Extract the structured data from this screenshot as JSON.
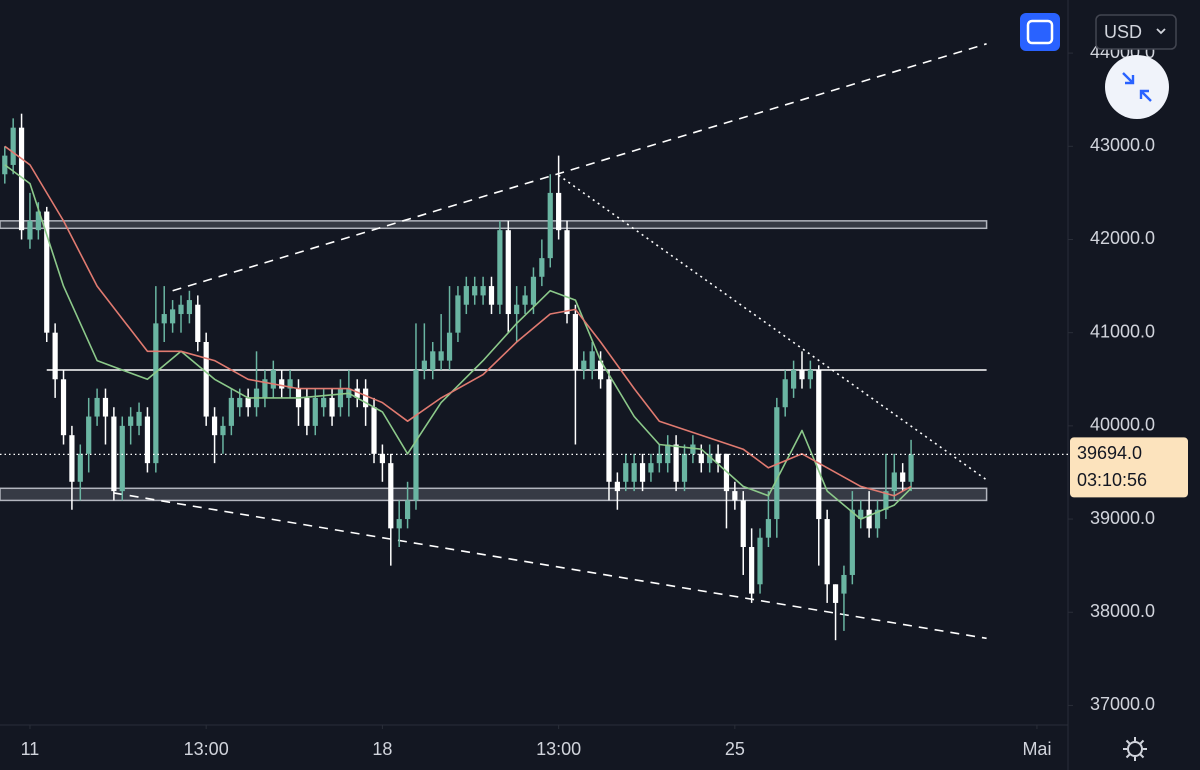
{
  "chart_data": {
    "type": "candlestick",
    "currency": "USD",
    "xlim": [
      -0.57,
      126.7
    ],
    "xticks": [
      {
        "value": 3,
        "label": "11"
      },
      {
        "value": 24,
        "label": "13:00"
      },
      {
        "value": 45,
        "label": "18"
      },
      {
        "value": 66,
        "label": "13:00"
      },
      {
        "value": 87,
        "label": "25"
      },
      {
        "value": 123,
        "label": "Mai"
      }
    ],
    "ylim": [
      36790,
      44570
    ],
    "yticks": [
      {
        "value": 37000,
        "label": "37000.0"
      },
      {
        "value": 38000,
        "label": "38000.0"
      },
      {
        "value": 39000,
        "label": "39000.0"
      },
      {
        "value": 40000,
        "label": "40000.0"
      },
      {
        "value": 41000,
        "label": "41000.0"
      },
      {
        "value": 42000,
        "label": "42000.0"
      },
      {
        "value": 43000,
        "label": "43000.0"
      },
      {
        "value": 44000,
        "label": "44000.0"
      }
    ],
    "up_color": "#6ab5a2",
    "down_color": "#ffffff",
    "x": [
      0,
      1,
      2,
      3,
      4,
      5,
      6,
      7,
      8,
      9,
      10,
      11,
      12,
      13,
      14,
      15,
      16,
      17,
      18,
      19,
      20,
      21,
      22,
      23,
      24,
      25,
      26,
      27,
      28,
      29,
      30,
      31,
      32,
      33,
      34,
      35,
      36,
      37,
      38,
      39,
      40,
      41,
      42,
      43,
      44,
      45,
      46,
      47,
      48,
      49,
      50,
      51,
      52,
      53,
      54,
      55,
      56,
      57,
      58,
      59,
      60,
      61,
      62,
      63,
      64,
      65,
      66,
      67,
      68,
      69,
      70,
      71,
      72,
      73,
      74,
      75,
      76,
      77,
      78,
      79,
      80,
      81,
      82,
      83,
      84,
      85,
      86,
      87,
      88,
      89,
      90,
      91,
      92,
      93,
      94,
      95,
      96,
      97,
      98,
      99,
      100,
      101,
      102,
      103,
      104,
      105,
      106,
      107,
      108
    ],
    "candles": {
      "open": [
        42700,
        42800,
        43200,
        42000,
        42100,
        42300,
        41000,
        40500,
        39900,
        39400,
        39700,
        40100,
        40300,
        40100,
        39300,
        40000,
        40000,
        40100,
        39600,
        41100,
        41100,
        41200,
        41200,
        41300,
        40900,
        40100,
        39900,
        40000,
        40200,
        40300,
        40200,
        40300,
        40400,
        40500,
        40400,
        40400,
        40300,
        40000,
        40200,
        40300,
        40200,
        40300,
        40400,
        40400,
        40200,
        39700,
        39600,
        38900,
        39000,
        39200,
        40600,
        40600,
        40700,
        40700,
        41000,
        41300,
        41400,
        41400,
        41500,
        41300,
        42100,
        41200,
        41300,
        41300,
        41600,
        41800,
        42500,
        42100,
        41200,
        40600,
        40600,
        40700,
        40500,
        39400,
        39400,
        39400,
        39600,
        39500,
        39600,
        39600,
        39800,
        39400,
        39700,
        39700,
        39600,
        39700,
        39700,
        39300,
        39200,
        38700,
        38300,
        38800,
        39000,
        40200,
        40400,
        40600,
        40500,
        40600,
        39000,
        38300,
        38200,
        38400,
        39000,
        39100,
        38900,
        39100,
        39300,
        39500,
        39400
      ],
      "high": [
        43000,
        43300,
        43350,
        42500,
        42400,
        42350,
        41100,
        40600,
        40000,
        39800,
        40300,
        40400,
        40400,
        40200,
        40100,
        40200,
        40250,
        40200,
        41500,
        41500,
        41350,
        41400,
        41450,
        41400,
        41000,
        40200,
        40100,
        40400,
        40400,
        40400,
        40800,
        40600,
        40700,
        40600,
        40600,
        40500,
        40400,
        40400,
        40400,
        40400,
        40500,
        40600,
        40500,
        40500,
        40300,
        39800,
        39700,
        39200,
        39400,
        41100,
        41100,
        40900,
        41200,
        41500,
        41500,
        41600,
        41600,
        41600,
        41600,
        42200,
        42200,
        41500,
        41500,
        41700,
        42000,
        42700,
        42900,
        42200,
        41300,
        40800,
        40900,
        40800,
        40600,
        39500,
        39700,
        39700,
        39700,
        39700,
        39800,
        39900,
        39900,
        39800,
        39900,
        39800,
        39800,
        39800,
        39700,
        39400,
        39300,
        38900,
        38900,
        39300,
        40300,
        40600,
        40700,
        40800,
        40700,
        40650,
        39100,
        38300,
        38500,
        39300,
        39200,
        39300,
        39200,
        39700,
        39700,
        39600,
        39850
      ],
      "low": [
        42600,
        42700,
        42000,
        41900,
        42000,
        40900,
        40300,
        39800,
        39100,
        39200,
        39500,
        40000,
        39800,
        39200,
        39200,
        39800,
        39900,
        39500,
        39500,
        40900,
        41000,
        41000,
        41100,
        40800,
        40000,
        39600,
        39700,
        39900,
        40100,
        40100,
        40100,
        40200,
        40300,
        40300,
        40300,
        40000,
        39900,
        39900,
        40100,
        40000,
        40100,
        40100,
        40200,
        40000,
        39600,
        39400,
        38500,
        38700,
        38900,
        39100,
        40500,
        40500,
        40600,
        40600,
        40900,
        41200,
        41300,
        41300,
        41200,
        41200,
        41000,
        40900,
        41200,
        41200,
        41500,
        41700,
        42000,
        41100,
        39800,
        40500,
        40500,
        40400,
        39200,
        39100,
        39300,
        39300,
        39300,
        39400,
        39500,
        39500,
        39300,
        39300,
        39600,
        39500,
        39500,
        39500,
        38900,
        39100,
        38400,
        38100,
        38200,
        38700,
        38800,
        40100,
        40300,
        40400,
        40400,
        38500,
        38100,
        37700,
        37800,
        38300,
        38900,
        38800,
        38800,
        39000,
        39200,
        39300,
        39300
      ],
      "close": [
        42900,
        43200,
        42100,
        42200,
        42300,
        41000,
        40500,
        39900,
        39400,
        39700,
        40100,
        40300,
        40100,
        39300,
        40000,
        40100,
        40150,
        39600,
        41100,
        41200,
        41250,
        41300,
        41350,
        40900,
        40100,
        39900,
        40000,
        40300,
        40300,
        40200,
        40400,
        40500,
        40600,
        40400,
        40500,
        40200,
        40000,
        40300,
        40300,
        40100,
        40400,
        40400,
        40300,
        40200,
        39700,
        39600,
        38900,
        39000,
        39200,
        40600,
        40700,
        40800,
        40800,
        41000,
        41400,
        41500,
        41500,
        41500,
        41300,
        42100,
        41200,
        41300,
        41400,
        41600,
        41800,
        42500,
        42100,
        41200,
        40600,
        40700,
        40800,
        40500,
        39400,
        39300,
        39600,
        39600,
        39400,
        39600,
        39700,
        39800,
        39400,
        39700,
        39800,
        39600,
        39700,
        39600,
        39300,
        39200,
        38700,
        38200,
        38800,
        39000,
        40200,
        40500,
        40600,
        40500,
        40600,
        39000,
        38300,
        38100,
        38400,
        39100,
        39100,
        38900,
        39100,
        39300,
        39500,
        39400,
        39694
      ]
    },
    "moving_averages": [
      {
        "color": "#8cc98a",
        "x": [
          0,
          3,
          7,
          11,
          17,
          21,
          25,
          29,
          35,
          41,
          45,
          48,
          52,
          57,
          61,
          65,
          68,
          71,
          75,
          78,
          83,
          88,
          91,
          95,
          98,
          102,
          106,
          108
        ],
        "values": [
          42800,
          42600,
          41500,
          40700,
          40500,
          40800,
          40500,
          40300,
          40300,
          40350,
          40150,
          39700,
          40250,
          40700,
          41100,
          41450,
          41350,
          40700,
          40100,
          39800,
          39750,
          39350,
          39250,
          39950,
          39300,
          39000,
          39150,
          39330
        ]
      },
      {
        "color": "#e07a70",
        "x": [
          0,
          3,
          7,
          11,
          17,
          21,
          25,
          29,
          35,
          41,
          45,
          48,
          52,
          57,
          61,
          65,
          68,
          71,
          75,
          78,
          83,
          88,
          91,
          95,
          98,
          102,
          106,
          108
        ],
        "values": [
          43000,
          42800,
          42200,
          41500,
          40800,
          40800,
          40700,
          40500,
          40400,
          40400,
          40250,
          40050,
          40300,
          40550,
          40900,
          41200,
          41250,
          40900,
          40400,
          40050,
          39900,
          39750,
          39550,
          39700,
          39550,
          39350,
          39250,
          39350
        ]
      }
    ],
    "zones": [
      {
        "low": 42120,
        "high": 42200,
        "x": [
          -0.57,
          117
        ]
      },
      {
        "low": 39200,
        "high": 39330,
        "x": [
          -0.57,
          117
        ]
      }
    ],
    "hlines": [
      {
        "value": 40600,
        "x": [
          5,
          117
        ]
      }
    ],
    "trendlines": [
      {
        "style": "dashed",
        "x": [
          20,
          117
        ],
        "y": [
          41450,
          44100
        ]
      },
      {
        "style": "dashed",
        "x": [
          13,
          117
        ],
        "y": [
          39280,
          37720
        ]
      },
      {
        "style": "dotted",
        "x": [
          66,
          117
        ],
        "y": [
          42690,
          39420
        ]
      }
    ],
    "last_price": {
      "value": 39694,
      "label": "39694.0"
    },
    "countdown": "03:10:56"
  }
}
